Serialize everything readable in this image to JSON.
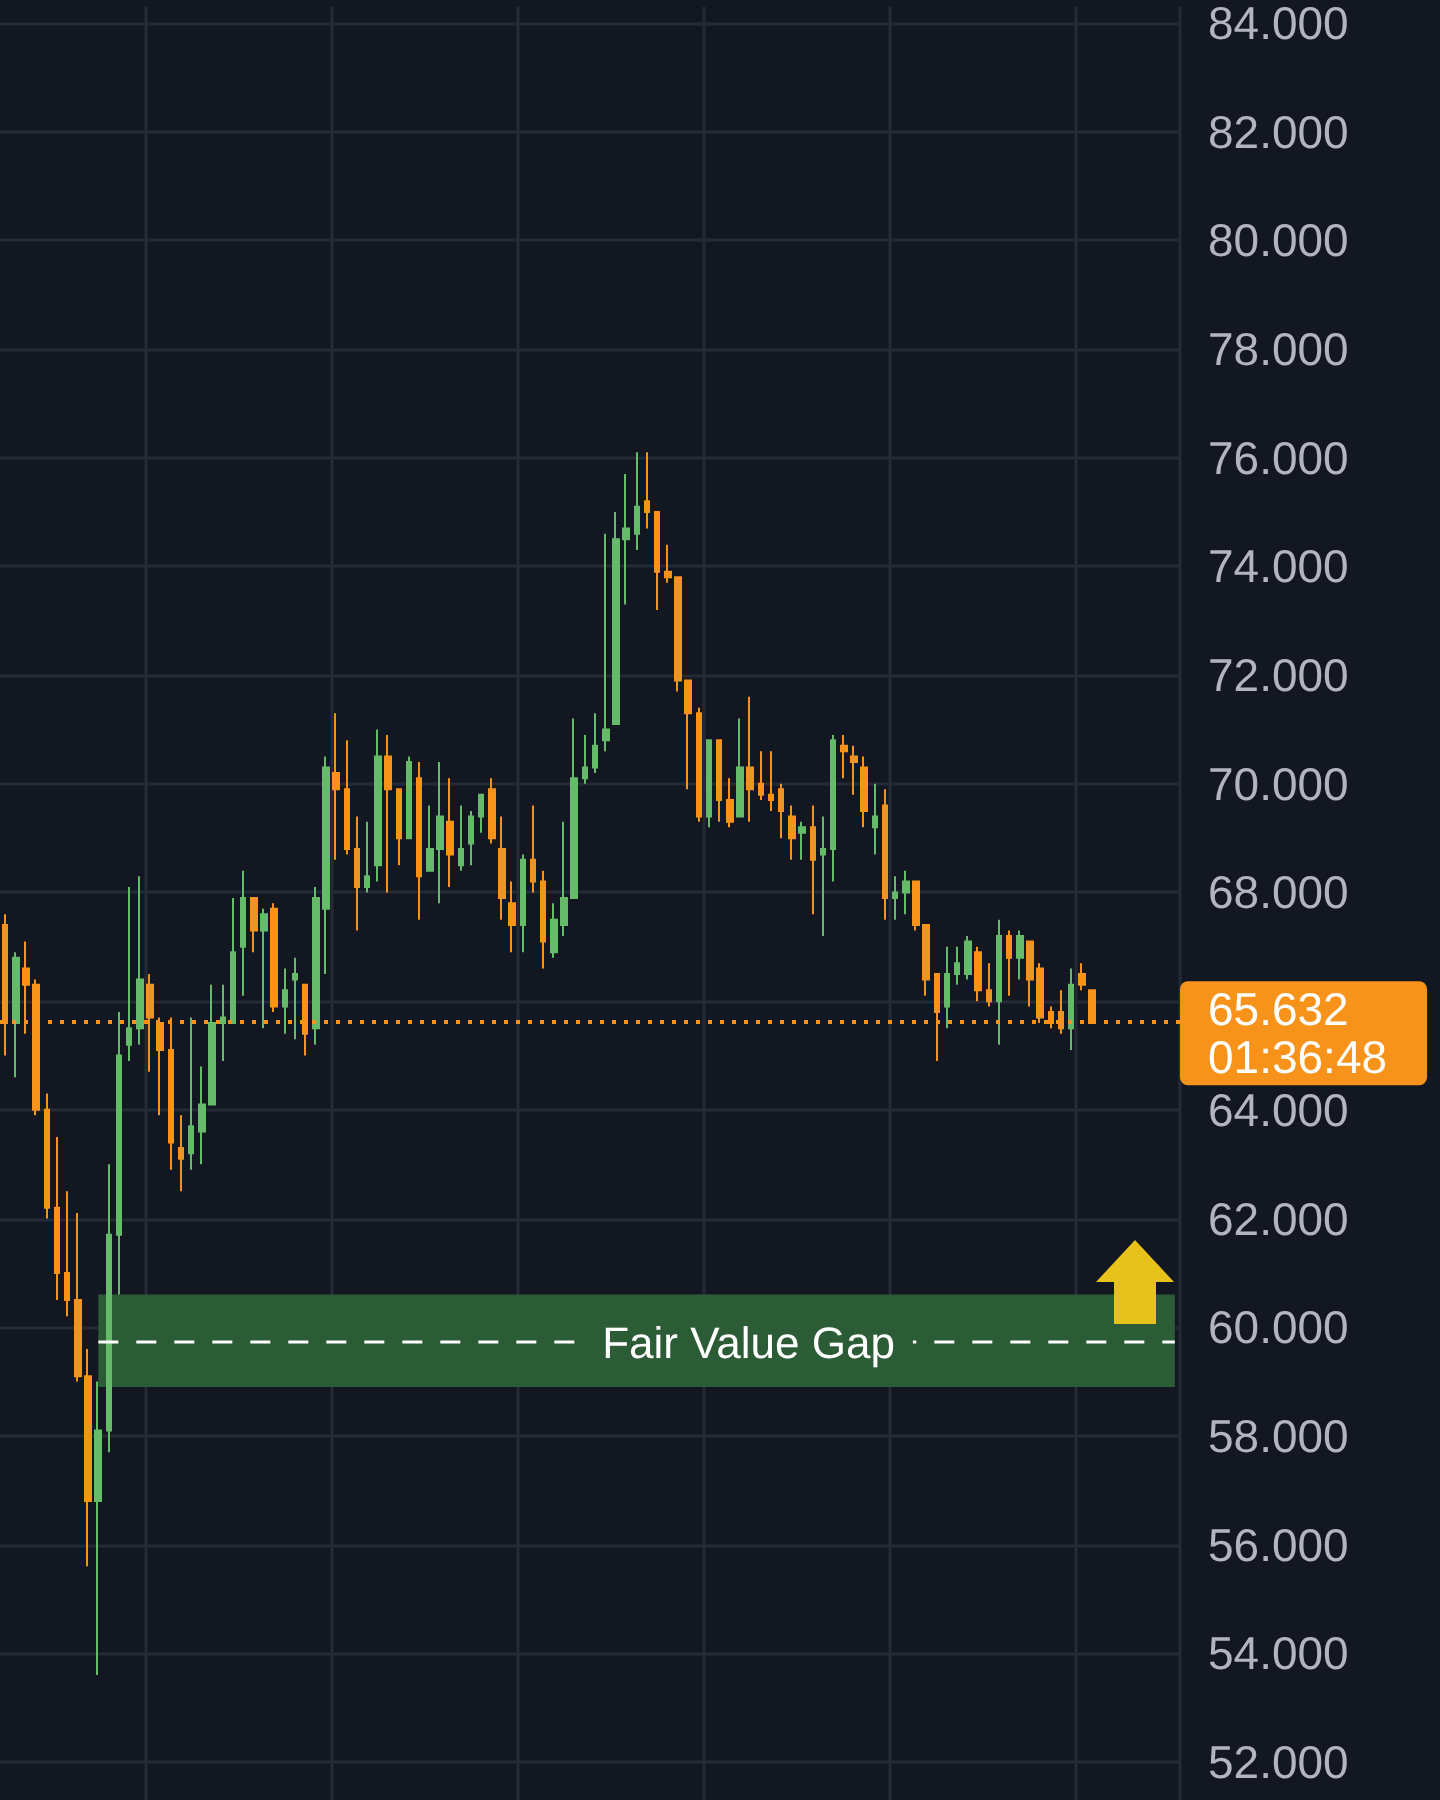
{
  "chart_data": {
    "type": "candlestick",
    "categories": [
      null,
      null,
      null,
      null,
      null,
      null,
      null,
      null,
      null,
      null,
      null,
      null,
      null,
      null,
      null,
      null,
      null,
      null,
      null,
      null,
      null,
      null,
      null,
      null,
      null,
      null,
      null,
      null,
      null,
      null,
      null,
      null,
      null,
      null,
      null,
      null,
      null,
      null,
      null,
      null,
      null,
      null,
      null,
      null,
      null,
      null,
      null,
      null,
      null,
      null,
      null,
      null,
      null,
      null,
      null,
      null,
      null,
      null,
      null,
      null,
      null,
      null,
      null,
      null,
      null,
      null,
      null,
      null,
      null,
      null,
      null,
      null,
      null,
      null,
      null,
      null,
      null,
      null,
      null,
      null,
      null,
      null,
      null,
      null,
      null,
      null,
      null,
      null,
      null,
      null,
      null,
      null,
      null,
      null,
      null,
      null,
      null,
      null,
      null,
      null,
      null,
      null,
      null,
      null,
      null,
      null,
      null,
      null,
      null,
      null,
      null,
      null,
      null,
      null
    ],
    "ohlc": [
      [
        67.4,
        67.6,
        65.0,
        65.6
      ],
      [
        65.6,
        66.9,
        64.6,
        66.8
      ],
      [
        66.6,
        67.1,
        65.4,
        66.3
      ],
      [
        66.3,
        66.4,
        63.9,
        64.0
      ],
      [
        64.0,
        64.3,
        62.0,
        62.2
      ],
      [
        62.2,
        63.5,
        60.5,
        61.0
      ],
      [
        61.0,
        62.5,
        60.2,
        60.5
      ],
      [
        60.5,
        62.1,
        59.0,
        59.1
      ],
      [
        59.1,
        59.6,
        55.6,
        56.8
      ],
      [
        56.8,
        59.0,
        53.6,
        58.1
      ],
      [
        58.1,
        63.0,
        57.7,
        61.7
      ],
      [
        61.7,
        65.8,
        60.6,
        65.0
      ],
      [
        65.2,
        68.1,
        64.9,
        65.5
      ],
      [
        65.5,
        68.3,
        65.2,
        66.4
      ],
      [
        66.3,
        66.5,
        64.7,
        65.7
      ],
      [
        65.6,
        65.7,
        63.9,
        65.1
      ],
      [
        65.1,
        65.7,
        62.9,
        63.4
      ],
      [
        63.3,
        63.9,
        62.5,
        63.1
      ],
      [
        63.2,
        65.7,
        62.9,
        63.7
      ],
      [
        63.6,
        64.8,
        63.0,
        64.1
      ],
      [
        64.1,
        66.3,
        64.1,
        65.6
      ],
      [
        65.6,
        66.3,
        64.9,
        65.7
      ],
      [
        65.6,
        67.9,
        65.6,
        66.9
      ],
      [
        67.0,
        68.4,
        66.1,
        67.9
      ],
      [
        67.9,
        67.9,
        66.9,
        67.3
      ],
      [
        67.3,
        67.7,
        65.5,
        67.6
      ],
      [
        67.7,
        67.8,
        65.8,
        65.9
      ],
      [
        65.9,
        66.6,
        65.4,
        66.2
      ],
      [
        66.4,
        66.8,
        65.3,
        66.5
      ],
      [
        66.3,
        66.3,
        65.0,
        65.4
      ],
      [
        65.5,
        68.1,
        65.2,
        67.9
      ],
      [
        67.7,
        70.5,
        66.5,
        70.3
      ],
      [
        70.2,
        71.3,
        68.6,
        69.9
      ],
      [
        69.9,
        70.8,
        68.7,
        68.8
      ],
      [
        68.8,
        69.4,
        67.3,
        68.1
      ],
      [
        68.1,
        69.3,
        68.0,
        68.3
      ],
      [
        68.5,
        71.0,
        68.2,
        70.5
      ],
      [
        70.5,
        70.9,
        68.0,
        69.9
      ],
      [
        69.9,
        69.9,
        68.5,
        69.0
      ],
      [
        69.0,
        70.5,
        69.0,
        70.4
      ],
      [
        70.1,
        70.4,
        67.5,
        68.3
      ],
      [
        68.4,
        69.6,
        68.4,
        68.8
      ],
      [
        68.8,
        70.4,
        67.8,
        69.4
      ],
      [
        69.3,
        70.1,
        68.1,
        68.7
      ],
      [
        68.5,
        69.6,
        68.4,
        68.8
      ],
      [
        68.9,
        69.5,
        68.5,
        69.4
      ],
      [
        69.4,
        69.8,
        69.1,
        69.8
      ],
      [
        69.9,
        70.1,
        68.9,
        69.0
      ],
      [
        68.8,
        69.4,
        67.5,
        67.9
      ],
      [
        67.8,
        68.2,
        66.9,
        67.4
      ],
      [
        67.4,
        68.7,
        66.9,
        68.6
      ],
      [
        68.6,
        69.6,
        68.0,
        68.2
      ],
      [
        68.2,
        68.4,
        66.6,
        67.1
      ],
      [
        66.9,
        67.8,
        66.8,
        67.5
      ],
      [
        67.4,
        69.3,
        67.2,
        67.9
      ],
      [
        67.9,
        71.2,
        67.9,
        70.1
      ],
      [
        70.1,
        70.9,
        70.0,
        70.3
      ],
      [
        70.3,
        71.3,
        70.2,
        70.7
      ],
      [
        70.8,
        74.6,
        70.6,
        71.0
      ],
      [
        71.1,
        75.0,
        71.1,
        74.5
      ],
      [
        74.5,
        75.7,
        73.3,
        74.7
      ],
      [
        74.6,
        76.1,
        74.3,
        75.1
      ],
      [
        75.2,
        76.1,
        74.7,
        75.0
      ],
      [
        75.0,
        75.0,
        73.2,
        73.9
      ],
      [
        73.9,
        74.4,
        73.7,
        73.8
      ],
      [
        73.8,
        73.8,
        71.7,
        71.9
      ],
      [
        71.9,
        71.9,
        69.9,
        71.3
      ],
      [
        71.3,
        71.4,
        69.3,
        69.4
      ],
      [
        69.4,
        70.8,
        69.2,
        70.8
      ],
      [
        70.8,
        70.8,
        69.3,
        69.7
      ],
      [
        69.7,
        70.1,
        69.2,
        69.3
      ],
      [
        69.4,
        71.2,
        69.4,
        70.3
      ],
      [
        70.3,
        71.6,
        69.3,
        69.9
      ],
      [
        70.0,
        70.6,
        69.7,
        69.8
      ],
      [
        69.8,
        70.6,
        69.5,
        69.7
      ],
      [
        69.9,
        70.0,
        69.0,
        69.5
      ],
      [
        69.4,
        69.6,
        68.6,
        69.0
      ],
      [
        69.1,
        69.3,
        68.6,
        69.2
      ],
      [
        69.2,
        69.6,
        67.6,
        68.6
      ],
      [
        68.7,
        69.4,
        67.2,
        68.8
      ],
      [
        68.8,
        70.9,
        68.2,
        70.8
      ],
      [
        70.7,
        70.9,
        70.1,
        70.6
      ],
      [
        70.5,
        70.7,
        69.8,
        70.4
      ],
      [
        70.3,
        70.5,
        69.2,
        69.5
      ],
      [
        69.2,
        70.0,
        68.7,
        69.4
      ],
      [
        69.6,
        69.9,
        67.5,
        67.9
      ],
      [
        67.9,
        68.3,
        67.5,
        68.0
      ],
      [
        68.0,
        68.4,
        67.6,
        68.2
      ],
      [
        68.2,
        68.2,
        67.3,
        67.4
      ],
      [
        67.4,
        67.4,
        66.1,
        66.4
      ],
      [
        66.5,
        66.5,
        64.9,
        65.8
      ],
      [
        65.9,
        67.0,
        65.5,
        66.5
      ],
      [
        66.5,
        67.0,
        66.3,
        66.7
      ],
      [
        66.5,
        67.2,
        66.4,
        67.1
      ],
      [
        66.9,
        67.0,
        66.0,
        66.2
      ],
      [
        66.2,
        66.7,
        65.9,
        66.0
      ],
      [
        66.0,
        67.5,
        65.2,
        67.2
      ],
      [
        67.2,
        67.3,
        66.1,
        66.8
      ],
      [
        66.8,
        67.3,
        66.4,
        67.2
      ],
      [
        67.1,
        67.1,
        65.9,
        66.4
      ],
      [
        66.6,
        66.7,
        65.6,
        65.7
      ],
      [
        65.8,
        65.9,
        65.5,
        65.6
      ],
      [
        65.8,
        66.2,
        65.4,
        65.5
      ],
      [
        65.5,
        66.6,
        65.1,
        66.3
      ],
      [
        66.5,
        66.7,
        66.2,
        66.3
      ],
      [
        66.2,
        66.2,
        65.6,
        65.6
      ],
      null,
      null,
      null,
      null,
      null,
      null,
      null,
      null
    ],
    "colors": [
      "#f7931a",
      "#66bb6a",
      "#f7931a",
      "#f7931a",
      "#f7931a",
      "#f7931a",
      "#f7931a",
      "#f7931a",
      "#f7931a",
      "#66bb6a",
      "#66bb6a",
      "#66bb6a",
      "#66bb6a",
      "#66bb6a",
      "#f7931a",
      "#f7931a",
      "#f7931a",
      "#f7931a",
      "#66bb6a",
      "#66bb6a",
      "#66bb6a",
      "#66bb6a",
      "#66bb6a",
      "#66bb6a",
      "#f7931a",
      "#66bb6a",
      "#f7931a",
      "#66bb6a",
      "#66bb6a",
      "#f7931a",
      "#66bb6a",
      "#66bb6a",
      "#f7931a",
      "#f7931a",
      "#f7931a",
      "#66bb6a",
      "#66bb6a",
      "#f7931a",
      "#f7931a",
      "#66bb6a",
      "#f7931a",
      "#66bb6a",
      "#66bb6a",
      "#f7931a",
      "#66bb6a",
      "#66bb6a",
      "#66bb6a",
      "#f7931a",
      "#f7931a",
      "#f7931a",
      "#66bb6a",
      "#f7931a",
      "#f7931a",
      "#66bb6a",
      "#66bb6a",
      "#66bb6a",
      "#66bb6a",
      "#66bb6a",
      "#66bb6a",
      "#66bb6a",
      "#66bb6a",
      "#66bb6a",
      "#f7931a",
      "#f7931a",
      "#f7931a",
      "#f7931a",
      "#f7931a",
      "#f7931a",
      "#66bb6a",
      "#f7931a",
      "#f7931a",
      "#66bb6a",
      "#f7931a",
      "#f7931a",
      "#f7931a",
      "#f7931a",
      "#f7931a",
      "#66bb6a",
      "#f7931a",
      "#66bb6a",
      "#66bb6a",
      "#f7931a",
      "#f7931a",
      "#f7931a",
      "#66bb6a",
      "#f7931a",
      "#66bb6a",
      "#66bb6a",
      "#f7931a",
      "#f7931a",
      "#f7931a",
      "#66bb6a",
      "#66bb6a",
      "#66bb6a",
      "#f7931a",
      "#f7931a",
      "#66bb6a",
      "#f7931a",
      "#66bb6a",
      "#f7931a",
      "#f7931a",
      "#f7931a",
      "#f7931a",
      "#66bb6a",
      "#f7931a",
      "#f7931a",
      null,
      null,
      null,
      null,
      null,
      null,
      null,
      null
    ],
    "ylim": [
      51.3,
      84.3
    ],
    "yticks": [
      {
        "value": 52,
        "label": "52.000"
      },
      {
        "value": 54,
        "label": "54.000"
      },
      {
        "value": 56,
        "label": "56.000"
      },
      {
        "value": 58,
        "label": "58.000"
      },
      {
        "value": 60,
        "label": "60.000"
      },
      {
        "value": 62,
        "label": "62.000"
      },
      {
        "value": 64,
        "label": "64.000"
      },
      {
        "value": 66,
        "label": null
      },
      {
        "value": 68,
        "label": "68.000"
      },
      {
        "value": 70,
        "label": "70.000"
      },
      {
        "value": 72,
        "label": "72.000"
      },
      {
        "value": 74,
        "label": "74.000"
      },
      {
        "value": 76,
        "label": "76.000"
      },
      {
        "value": 78,
        "label": "78.000"
      },
      {
        "value": 80,
        "label": "80.000"
      },
      {
        "value": 82,
        "label": "82.000"
      },
      {
        "value": 84,
        "label": "84.000"
      }
    ],
    "grid": true,
    "tick_labels": "y",
    "ref_lines": [
      {
        "axis": "y",
        "value": 65.632,
        "label": "65.632",
        "color": "#f7931a",
        "line_style": "dotted"
      },
      {
        "axis": "y",
        "value": 59.75,
        "color": "#ffffff",
        "line_style": "dashed"
      }
    ],
    "bands": [
      {
        "axis": "y",
        "from": 58.9,
        "to": 60.6,
        "label": "Fair Value Gap",
        "color": "#2c5c36"
      }
    ],
    "annotations": [
      "01:36:48"
    ]
  }
}
